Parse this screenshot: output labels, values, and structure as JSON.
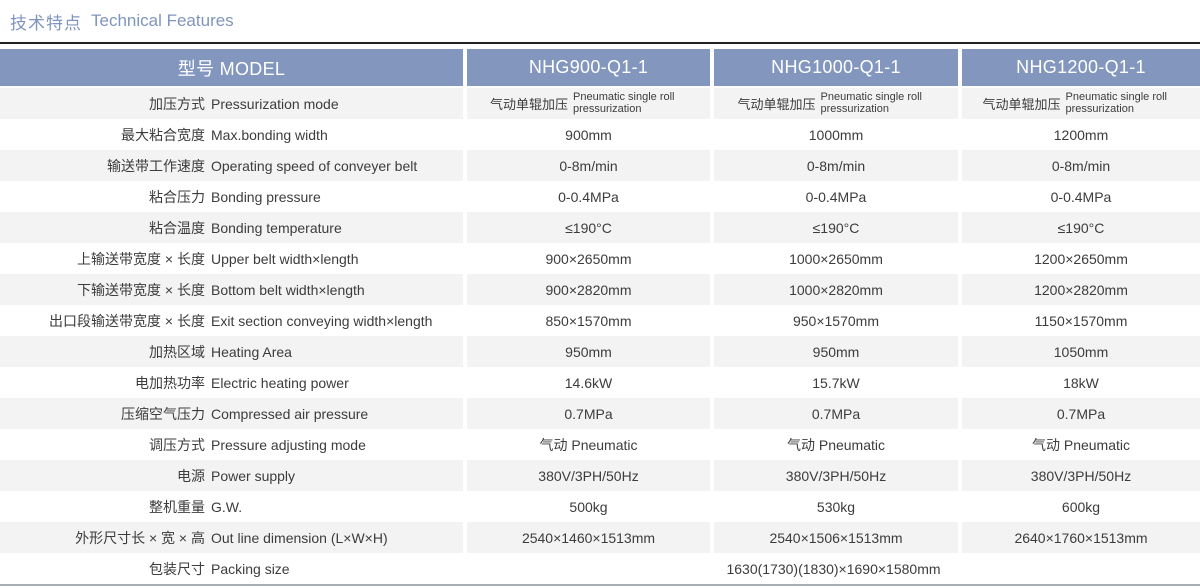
{
  "title": {
    "zh": "技术特点",
    "en": "Technical Features"
  },
  "colors": {
    "accent_header": "#8296be",
    "row_alt": "#f2f3f2",
    "title_text": "#7f95bd",
    "top_rule": "#222222",
    "bottom_rule": "#a8aeb4"
  },
  "table": {
    "header": {
      "model_label": "型号 MODEL",
      "models": [
        "NHG900-Q1-1",
        "NHG1000-Q1-1",
        "NHG1200-Q1-1"
      ]
    },
    "rows": [
      {
        "zh": "加压方式",
        "en": "Pressurization mode",
        "values": [
          {
            "zh": "气动单辊加压",
            "en": "Pneumatic single roll pressurization"
          },
          {
            "zh": "气动单辊加压",
            "en": "Pneumatic single roll pressurization"
          },
          {
            "zh": "气动单辊加压",
            "en": "Pneumatic single roll pressurization"
          }
        ]
      },
      {
        "zh": "最大粘合宽度",
        "en": "Max.bonding width",
        "values": [
          "900mm",
          "1000mm",
          "1200mm"
        ]
      },
      {
        "zh": "输送带工作速度",
        "en": "Operating speed of conveyer belt",
        "values": [
          "0-8m/min",
          "0-8m/min",
          "0-8m/min"
        ]
      },
      {
        "zh": "粘合压力",
        "en": "Bonding pressure",
        "values": [
          "0-0.4MPa",
          "0-0.4MPa",
          "0-0.4MPa"
        ]
      },
      {
        "zh": "粘合温度",
        "en": "Bonding temperature",
        "values": [
          "≤190°C",
          "≤190°C",
          "≤190°C"
        ]
      },
      {
        "zh": "上输送带宽度 × 长度",
        "en": "Upper belt width×length",
        "values": [
          "900×2650mm",
          "1000×2650mm",
          "1200×2650mm"
        ]
      },
      {
        "zh": "下输送带宽度 × 长度",
        "en": "Bottom belt width×length",
        "values": [
          "900×2820mm",
          "1000×2820mm",
          "1200×2820mm"
        ]
      },
      {
        "zh": "出口段输送带宽度 × 长度",
        "en": "Exit section conveying width×length",
        "values": [
          "850×1570mm",
          "950×1570mm",
          "1150×1570mm"
        ]
      },
      {
        "zh": "加热区域",
        "en": "Heating Area",
        "values": [
          "950mm",
          "950mm",
          "1050mm"
        ]
      },
      {
        "zh": "电加热功率",
        "en": "Electric heating power",
        "values": [
          "14.6kW",
          "15.7kW",
          "18kW"
        ]
      },
      {
        "zh": "压缩空气压力",
        "en": "Compressed air pressure",
        "values": [
          "0.7MPa",
          "0.7MPa",
          "0.7MPa"
        ]
      },
      {
        "zh": "调压方式",
        "en": "Pressure adjusting mode",
        "values": [
          "气动 Pneumatic",
          "气动 Pneumatic",
          "气动 Pneumatic"
        ]
      },
      {
        "zh": "电源",
        "en": "Power supply",
        "values": [
          "380V/3PH/50Hz",
          "380V/3PH/50Hz",
          "380V/3PH/50Hz"
        ]
      },
      {
        "zh": "整机重量",
        "en": "G.W.",
        "values": [
          "500kg",
          "530kg",
          "600kg"
        ]
      },
      {
        "zh": "外形尺寸长 × 宽 × 高",
        "en": "Out line dimension (L×W×H)",
        "values": [
          "2540×1460×1513mm",
          "2540×1506×1513mm",
          "2640×1760×1513mm"
        ]
      },
      {
        "zh": "包装尺寸",
        "en": "Packing size",
        "merged_value": "1630(1730)(1830)×1690×1580mm"
      }
    ]
  }
}
